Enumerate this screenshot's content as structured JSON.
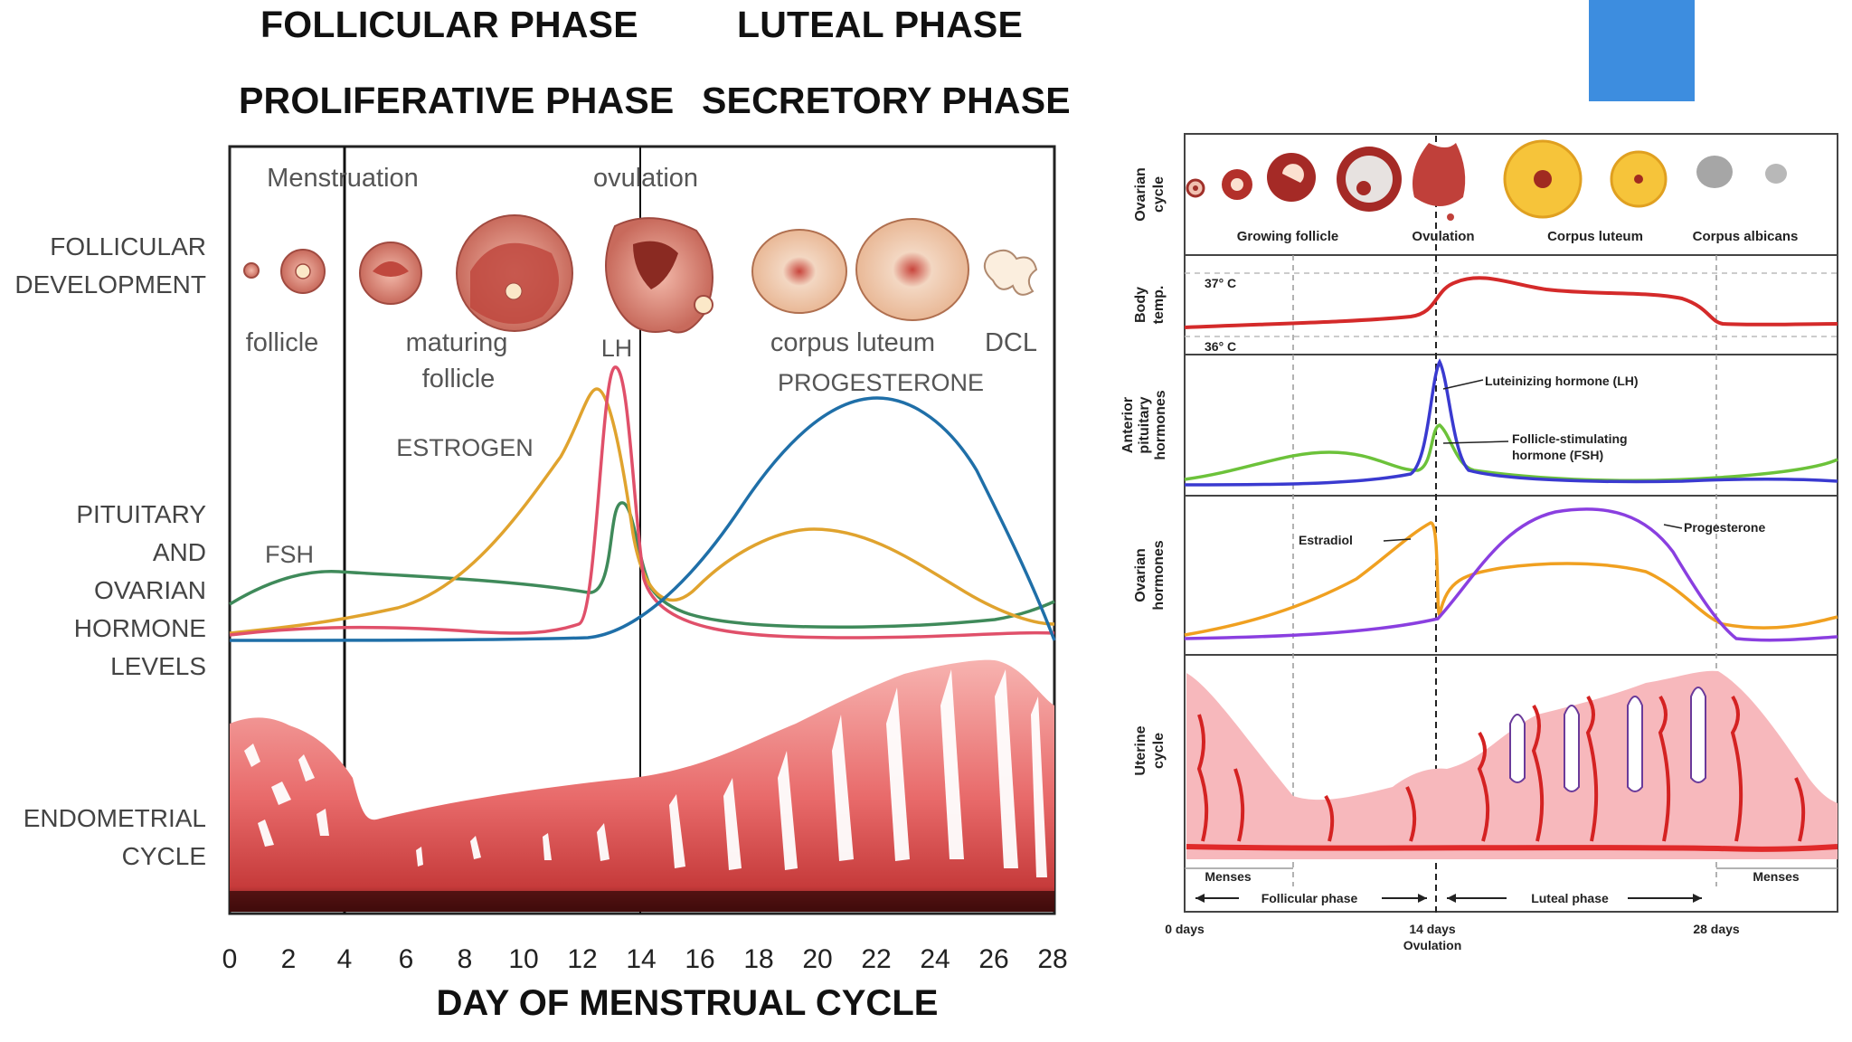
{
  "left_figure": {
    "phase_titles": {
      "follicular": "FOLLICULAR PHASE",
      "luteal": "LUTEAL PHASE",
      "proliferative": "PROLIFERATIVE PHASE",
      "secretory": "SECRETORY PHASE"
    },
    "row_labels": {
      "follicular_development": [
        "FOLLICULAR",
        "DEVELOPMENT"
      ],
      "hormone_levels": [
        "PITUITARY",
        "AND",
        "OVARIAN",
        "HORMONE",
        "LEVELS"
      ],
      "endometrial": [
        "ENDOMETRIAL",
        "CYCLE"
      ]
    },
    "event_labels": {
      "menstruation": "Menstruation",
      "ovulation": "ovulation"
    },
    "stage_labels": {
      "follicle": "follicle",
      "maturing_follicle": [
        "maturing",
        "follicle"
      ],
      "corpus_luteum": "corpus luteum",
      "dcl": "DCL"
    },
    "hormone_labels": {
      "lh": "LH",
      "estrogen": "ESTROGEN",
      "progesterone": "PROGESTERONE",
      "fsh": "FSH"
    },
    "x_axis": {
      "ticks": [
        "0",
        "2",
        "4",
        "6",
        "8",
        "10",
        "12",
        "14",
        "16",
        "18",
        "20",
        "22",
        "24",
        "26",
        "28"
      ],
      "title": "DAY OF MENSTRUAL CYCLE"
    }
  },
  "right_figure": {
    "row_labels": {
      "ovarian_cycle": [
        "Ovarian",
        "cycle"
      ],
      "body_temp": [
        "Body",
        "temp."
      ],
      "anterior_pituitary": [
        "Anterior",
        "pituitary",
        "hormones"
      ],
      "ovarian_hormones": [
        "Ovarian",
        "hormones"
      ],
      "uterine_cycle": [
        "Uterine",
        "cycle"
      ]
    },
    "ovarian_labels": {
      "growing_follicle": "Growing follicle",
      "ovulation": "Ovulation",
      "corpus_luteum": "Corpus luteum",
      "corpus_albicans": "Corpus albicans"
    },
    "temp_labels": {
      "high": "37° C",
      "low": "36° C"
    },
    "hormone_labels": {
      "lh": "Luteinizing hormone (LH)",
      "fsh": [
        "Follicle-stimulating",
        "hormone (FSH)"
      ],
      "estradiol": "Estradiol",
      "progesterone": "Progesterone"
    },
    "bottom_labels": {
      "menses_left": "Menses",
      "menses_right": "Menses",
      "follicular_phase": "Follicular phase",
      "luteal_phase": "Luteal phase",
      "day0": "0 days",
      "day14": "14 days",
      "day14_sub": "Ovulation",
      "day28": "28 days"
    }
  },
  "colors": {
    "estrogen": "#e0a32e",
    "lh": "#e0506a",
    "fsh": "#3f8a5a",
    "progesterone": "#1f6fa8",
    "endometrium": "#e86a6a",
    "right_temp": "#d42a2a",
    "right_lh": "#3a3ad0",
    "right_fsh": "#6cc23a",
    "right_estradiol": "#f0a020",
    "right_progesterone": "#8a3fe0",
    "accent_box": "#3d8ddf"
  }
}
